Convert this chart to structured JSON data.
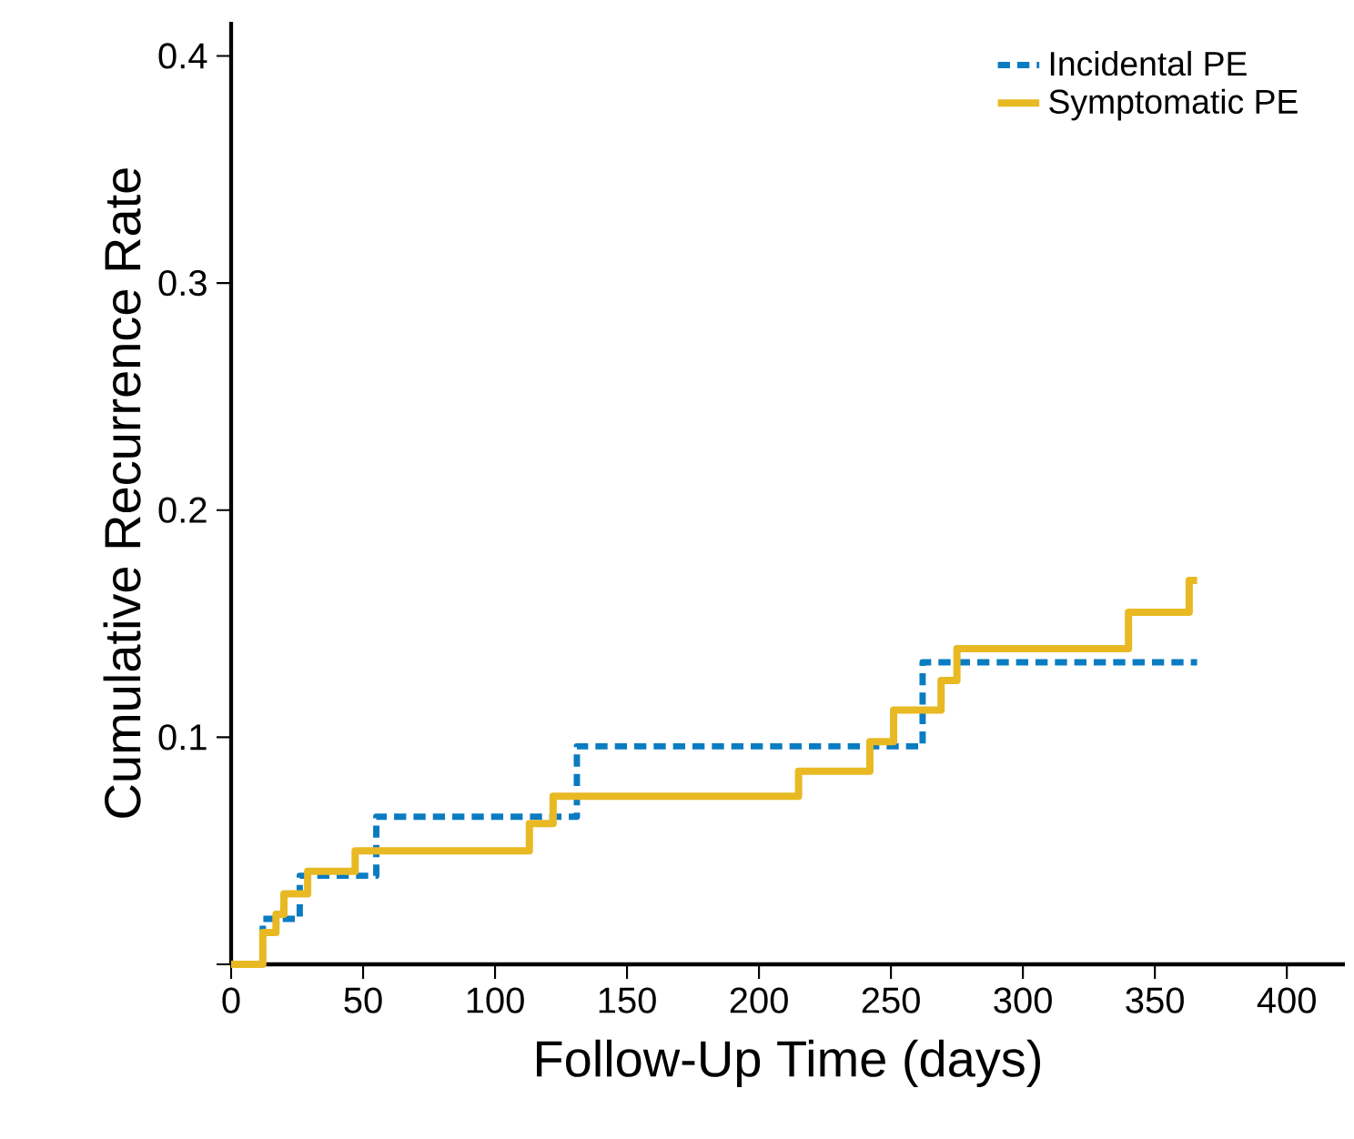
{
  "chart_data": {
    "type": "step",
    "xlabel": "Follow-Up Time (days)",
    "ylabel": "Cumulative Recurrence Rate",
    "xlim": [
      0,
      422
    ],
    "ylim": [
      0,
      0.415
    ],
    "xticks": [
      0,
      50,
      100,
      150,
      200,
      250,
      300,
      350,
      400
    ],
    "yticks": [
      {
        "value": 0,
        "label": null
      },
      0.1,
      0.2,
      0.3,
      0.4
    ],
    "grid": false,
    "legend": "top right",
    "marker": "none",
    "series": [
      {
        "name": "Incidental PE",
        "color": "#0a7cc1",
        "line_style": "dashed",
        "x": [
          0,
          12,
          26,
          55,
          131,
          262,
          366
        ],
        "values": [
          0,
          0.02,
          0.039,
          0.065,
          0.096,
          0.133,
          0.133
        ]
      },
      {
        "name": "Symptomatic PE",
        "color": "#e8b923",
        "line_style": "solid",
        "x": [
          0,
          12,
          17,
          20,
          29,
          47,
          113,
          122,
          215,
          242,
          251,
          269,
          275,
          340,
          363,
          366
        ],
        "values": [
          0,
          0.014,
          0.022,
          0.031,
          0.041,
          0.05,
          0.062,
          0.074,
          0.085,
          0.098,
          0.112,
          0.125,
          0.139,
          0.155,
          0.169,
          0.169
        ]
      }
    ]
  }
}
